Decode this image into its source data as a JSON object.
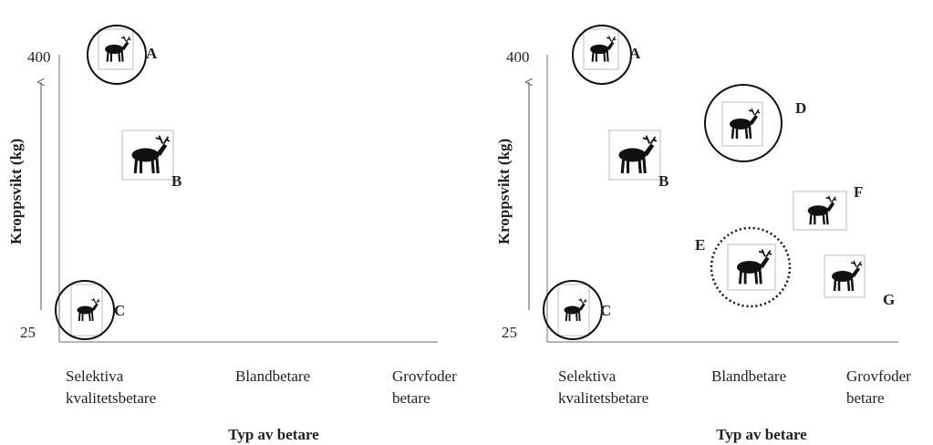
{
  "panels": [
    {
      "y_label": "Kroppsvikt (kg)",
      "y_ticks": [
        "400",
        "25"
      ],
      "categories": [
        [
          "Selektiva",
          "kvalitetsbetare"
        ],
        [
          "Blandbetare"
        ],
        [
          "Grovfoder",
          "betare"
        ]
      ],
      "x_label": "Typ av betare",
      "labels": [
        "A",
        "B",
        "C"
      ]
    },
    {
      "y_label": "Kroppsvikt (kg)",
      "y_ticks": [
        "400",
        "25"
      ],
      "categories": [
        [
          "Selektiva",
          "kvalitetsbetare"
        ],
        [
          "Blandbetare"
        ],
        [
          "Grovfoder",
          "betare"
        ]
      ],
      "x_label": "Typ av betare",
      "labels": [
        "A",
        "B",
        "C",
        "D",
        "E",
        "F",
        "G"
      ]
    }
  ]
}
